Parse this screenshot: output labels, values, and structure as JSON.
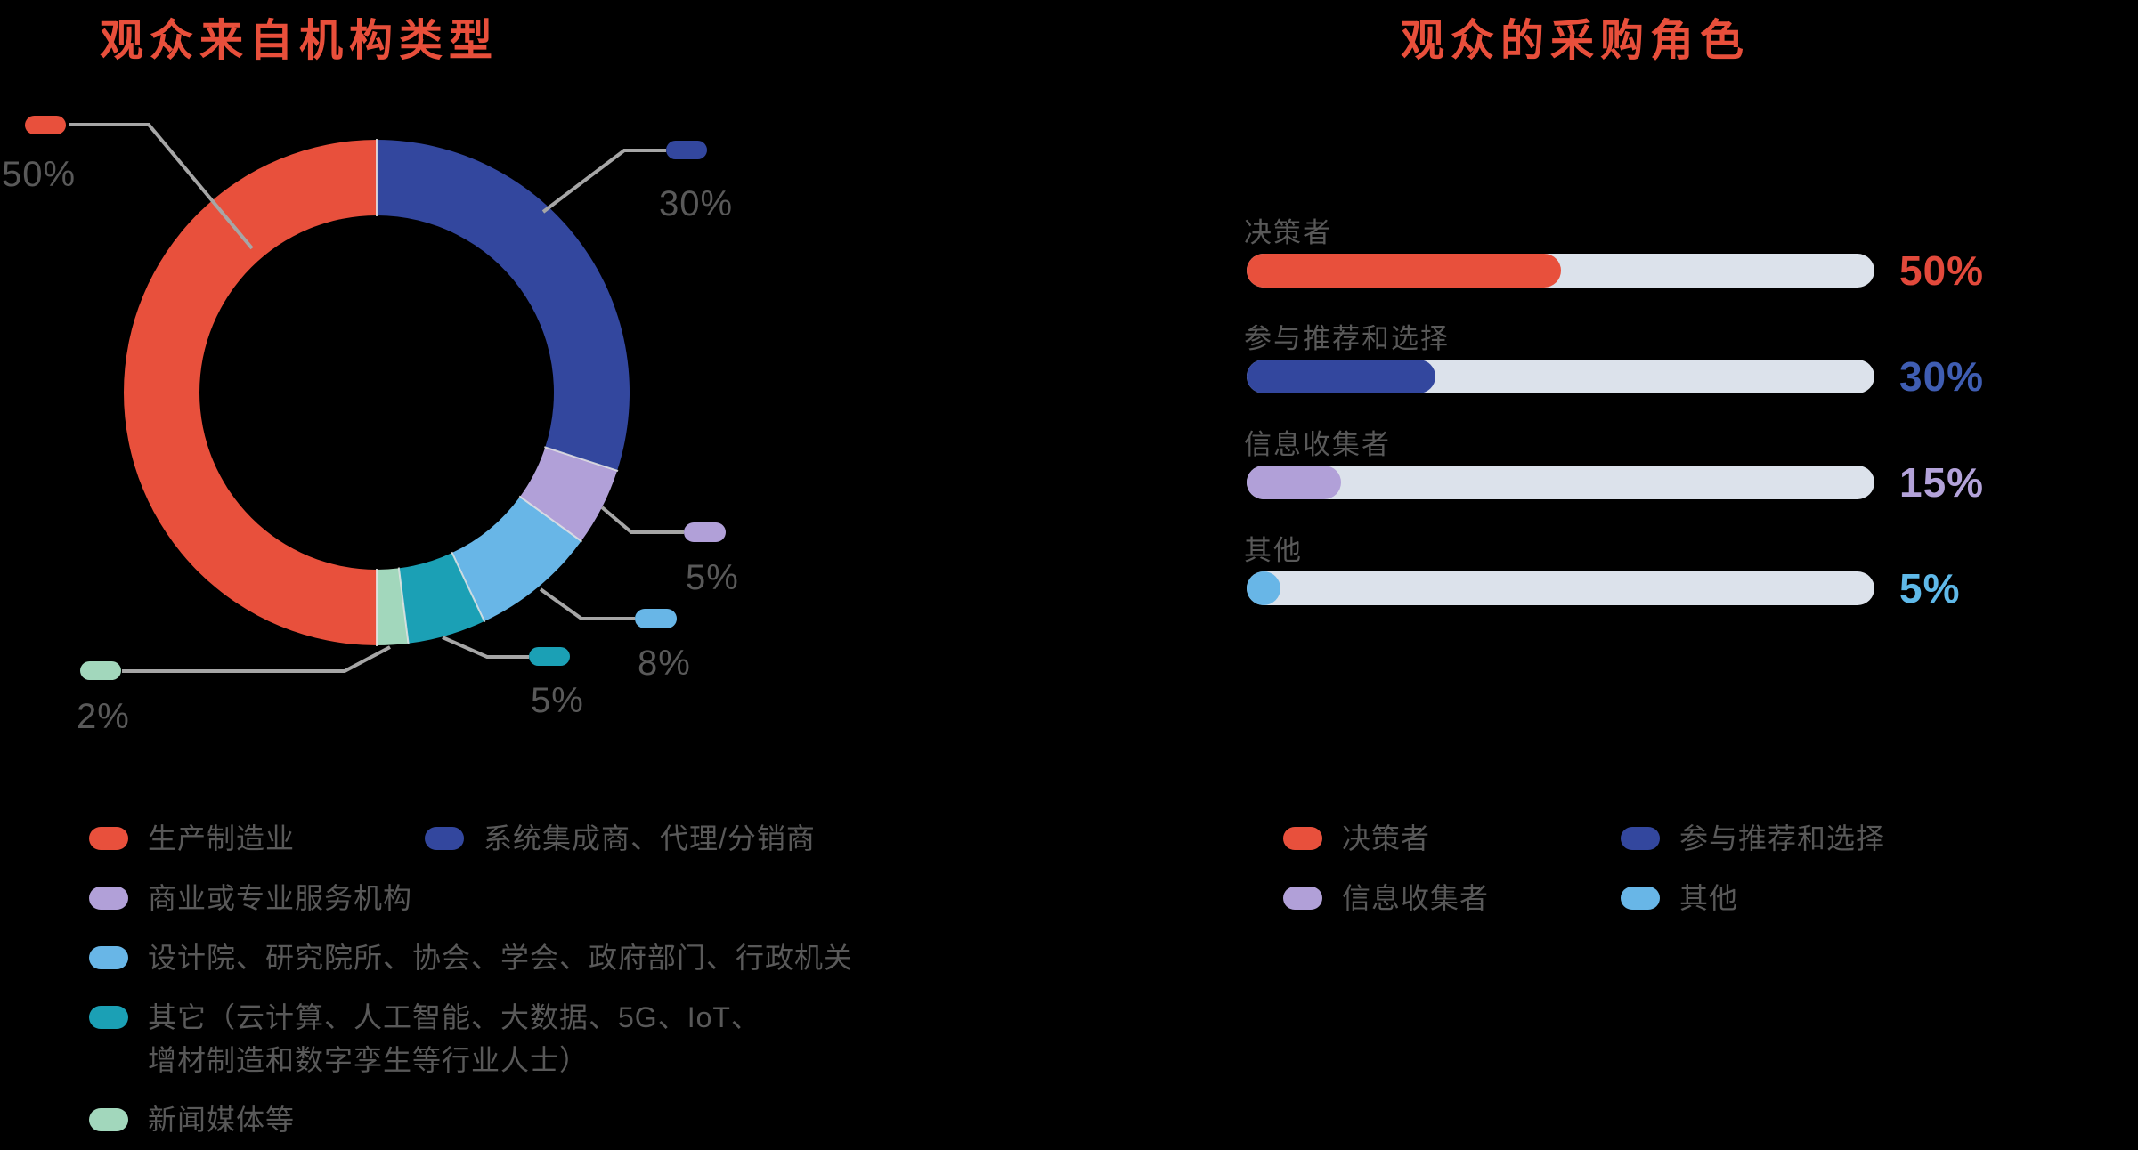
{
  "colors": {
    "accent_red": "#E8503C",
    "dark_blue": "#33479E",
    "purple": "#B1A0D8",
    "light_blue": "#68B6E7",
    "teal": "#1BA0B5",
    "green": "#A2D7BC",
    "title_red": "#E84F3B",
    "label_gray": "#595959",
    "leader_gray": "#A6A6A6",
    "track": "#DCE2EB",
    "pct_red": "#E2493B",
    "pct_blue": "#3F5DB2",
    "pct_purple": "#B3A2D9",
    "pct_lightblue": "#5FB9E9"
  },
  "left_chart": {
    "title": "观众来自机构类型",
    "segments": [
      {
        "callout": "30%",
        "value": 30,
        "color": "dark_blue"
      },
      {
        "callout": "5%",
        "value": 5,
        "color": "purple"
      },
      {
        "callout": "8%",
        "value": 8,
        "color": "light_blue"
      },
      {
        "callout": "5%",
        "value": 5,
        "color": "teal"
      },
      {
        "callout": "2%",
        "value": 2,
        "color": "green"
      },
      {
        "callout": "50%",
        "value": 50,
        "color": "accent_red"
      }
    ],
    "legend": [
      {
        "label": "生产制造业",
        "color": "accent_red"
      },
      {
        "label": "系统集成商、代理/分销商",
        "color": "dark_blue"
      },
      {
        "label": "商业或专业服务机构",
        "color": "purple"
      },
      {
        "label": "设计院、研究院所、协会、学会、政府部门、行政机关",
        "color": "light_blue"
      },
      {
        "label": "其它（云计算、人工智能、大数据、5G、IoT、\n增材制造和数字孪生等行业人士）",
        "color": "teal"
      },
      {
        "label": "新闻媒体等",
        "color": "green"
      }
    ]
  },
  "right_chart": {
    "title": "观众的采购角色",
    "rows": [
      {
        "label": "决策者",
        "value": 50,
        "pct": "50%",
        "color": "accent_red",
        "pct_color": "pct_red"
      },
      {
        "label": "参与推荐和选择",
        "value": 30,
        "pct": "30%",
        "color": "dark_blue",
        "pct_color": "pct_blue"
      },
      {
        "label": "信息收集者",
        "value": 15,
        "pct": "15%",
        "color": "purple",
        "pct_color": "pct_purple"
      },
      {
        "label": "其他",
        "value": 5,
        "pct": "5%",
        "color": "light_blue",
        "pct_color": "pct_lightblue"
      }
    ],
    "legend": [
      {
        "label": "决策者",
        "color": "accent_red"
      },
      {
        "label": "参与推荐和选择",
        "color": "dark_blue"
      },
      {
        "label": "信息收集者",
        "color": "purple"
      },
      {
        "label": "其他",
        "color": "light_blue"
      }
    ]
  },
  "chart_data": [
    {
      "type": "pie",
      "subtype": "donut",
      "title": "观众来自机构类型",
      "categories": [
        "生产制造业",
        "系统集成商、代理/分销商",
        "商业或专业服务机构",
        "设计院、研究院所、协会、学会、政府部门、行政机关",
        "其它（云计算、人工智能、大数据、5G、IoT、增材制造和数字孪生等行业人士）",
        "新闻媒体等"
      ],
      "values": [
        50,
        30,
        5,
        8,
        5,
        2
      ],
      "unit": "%",
      "legend_position": "bottom-left",
      "data_labels": [
        "50%",
        "30%",
        "5%",
        "8%",
        "5%",
        "2%"
      ]
    },
    {
      "type": "bar",
      "orientation": "horizontal",
      "title": "观众的采购角色",
      "categories": [
        "决策者",
        "参与推荐和选择",
        "信息收集者",
        "其他"
      ],
      "values": [
        50,
        30,
        15,
        5
      ],
      "unit": "%",
      "xlim": [
        0,
        100
      ],
      "grid": false,
      "legend_position": "bottom",
      "data_labels": [
        "50%",
        "30%",
        "15%",
        "5%"
      ]
    }
  ]
}
